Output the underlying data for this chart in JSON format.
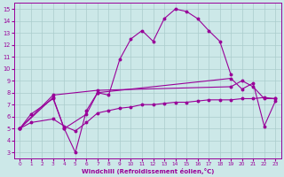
{
  "xlabel": "Windchill (Refroidissement éolien,°C)",
  "background_color": "#cce8e8",
  "grid_color": "#aacccc",
  "line_color": "#990099",
  "x_ticks": [
    0,
    1,
    2,
    3,
    4,
    5,
    6,
    7,
    8,
    9,
    10,
    11,
    12,
    13,
    14,
    15,
    16,
    17,
    18,
    19,
    20,
    21,
    22,
    23
  ],
  "y_ticks": [
    3,
    4,
    5,
    6,
    7,
    8,
    9,
    10,
    11,
    12,
    13,
    14,
    15
  ],
  "ylim": [
    2.5,
    15.5
  ],
  "xlim": [
    -0.5,
    23.5
  ],
  "line1_x": [
    0,
    1,
    3,
    4,
    5,
    6,
    7,
    8,
    9,
    10,
    11,
    12,
    13,
    14,
    15,
    16,
    17,
    18,
    19
  ],
  "line1_y": [
    5.0,
    6.2,
    7.5,
    5.0,
    3.0,
    6.5,
    8.0,
    7.8,
    10.8,
    12.5,
    13.2,
    12.3,
    14.2,
    15.0,
    14.8,
    14.2,
    13.2,
    12.3,
    9.5
  ],
  "line2_x": [
    0,
    3,
    4,
    6,
    7,
    19,
    20,
    21,
    22,
    23
  ],
  "line2_y": [
    5.0,
    7.6,
    5.0,
    6.2,
    8.0,
    9.2,
    8.3,
    8.8,
    5.2,
    7.3
  ],
  "line3_x": [
    0,
    3,
    7,
    19,
    20,
    21,
    22,
    23
  ],
  "line3_y": [
    5.0,
    7.8,
    8.2,
    8.5,
    9.0,
    8.5,
    7.5,
    7.5
  ],
  "line4_x": [
    0,
    1,
    3,
    4,
    5,
    6,
    7,
    8,
    9,
    10,
    11,
    12,
    13,
    14,
    15,
    16,
    17,
    18,
    19,
    20,
    21,
    22,
    23
  ],
  "line4_y": [
    5.0,
    5.5,
    5.8,
    5.2,
    4.8,
    5.5,
    6.3,
    6.5,
    6.7,
    6.8,
    7.0,
    7.0,
    7.1,
    7.2,
    7.2,
    7.3,
    7.4,
    7.4,
    7.4,
    7.5,
    7.5,
    7.6,
    7.5
  ]
}
